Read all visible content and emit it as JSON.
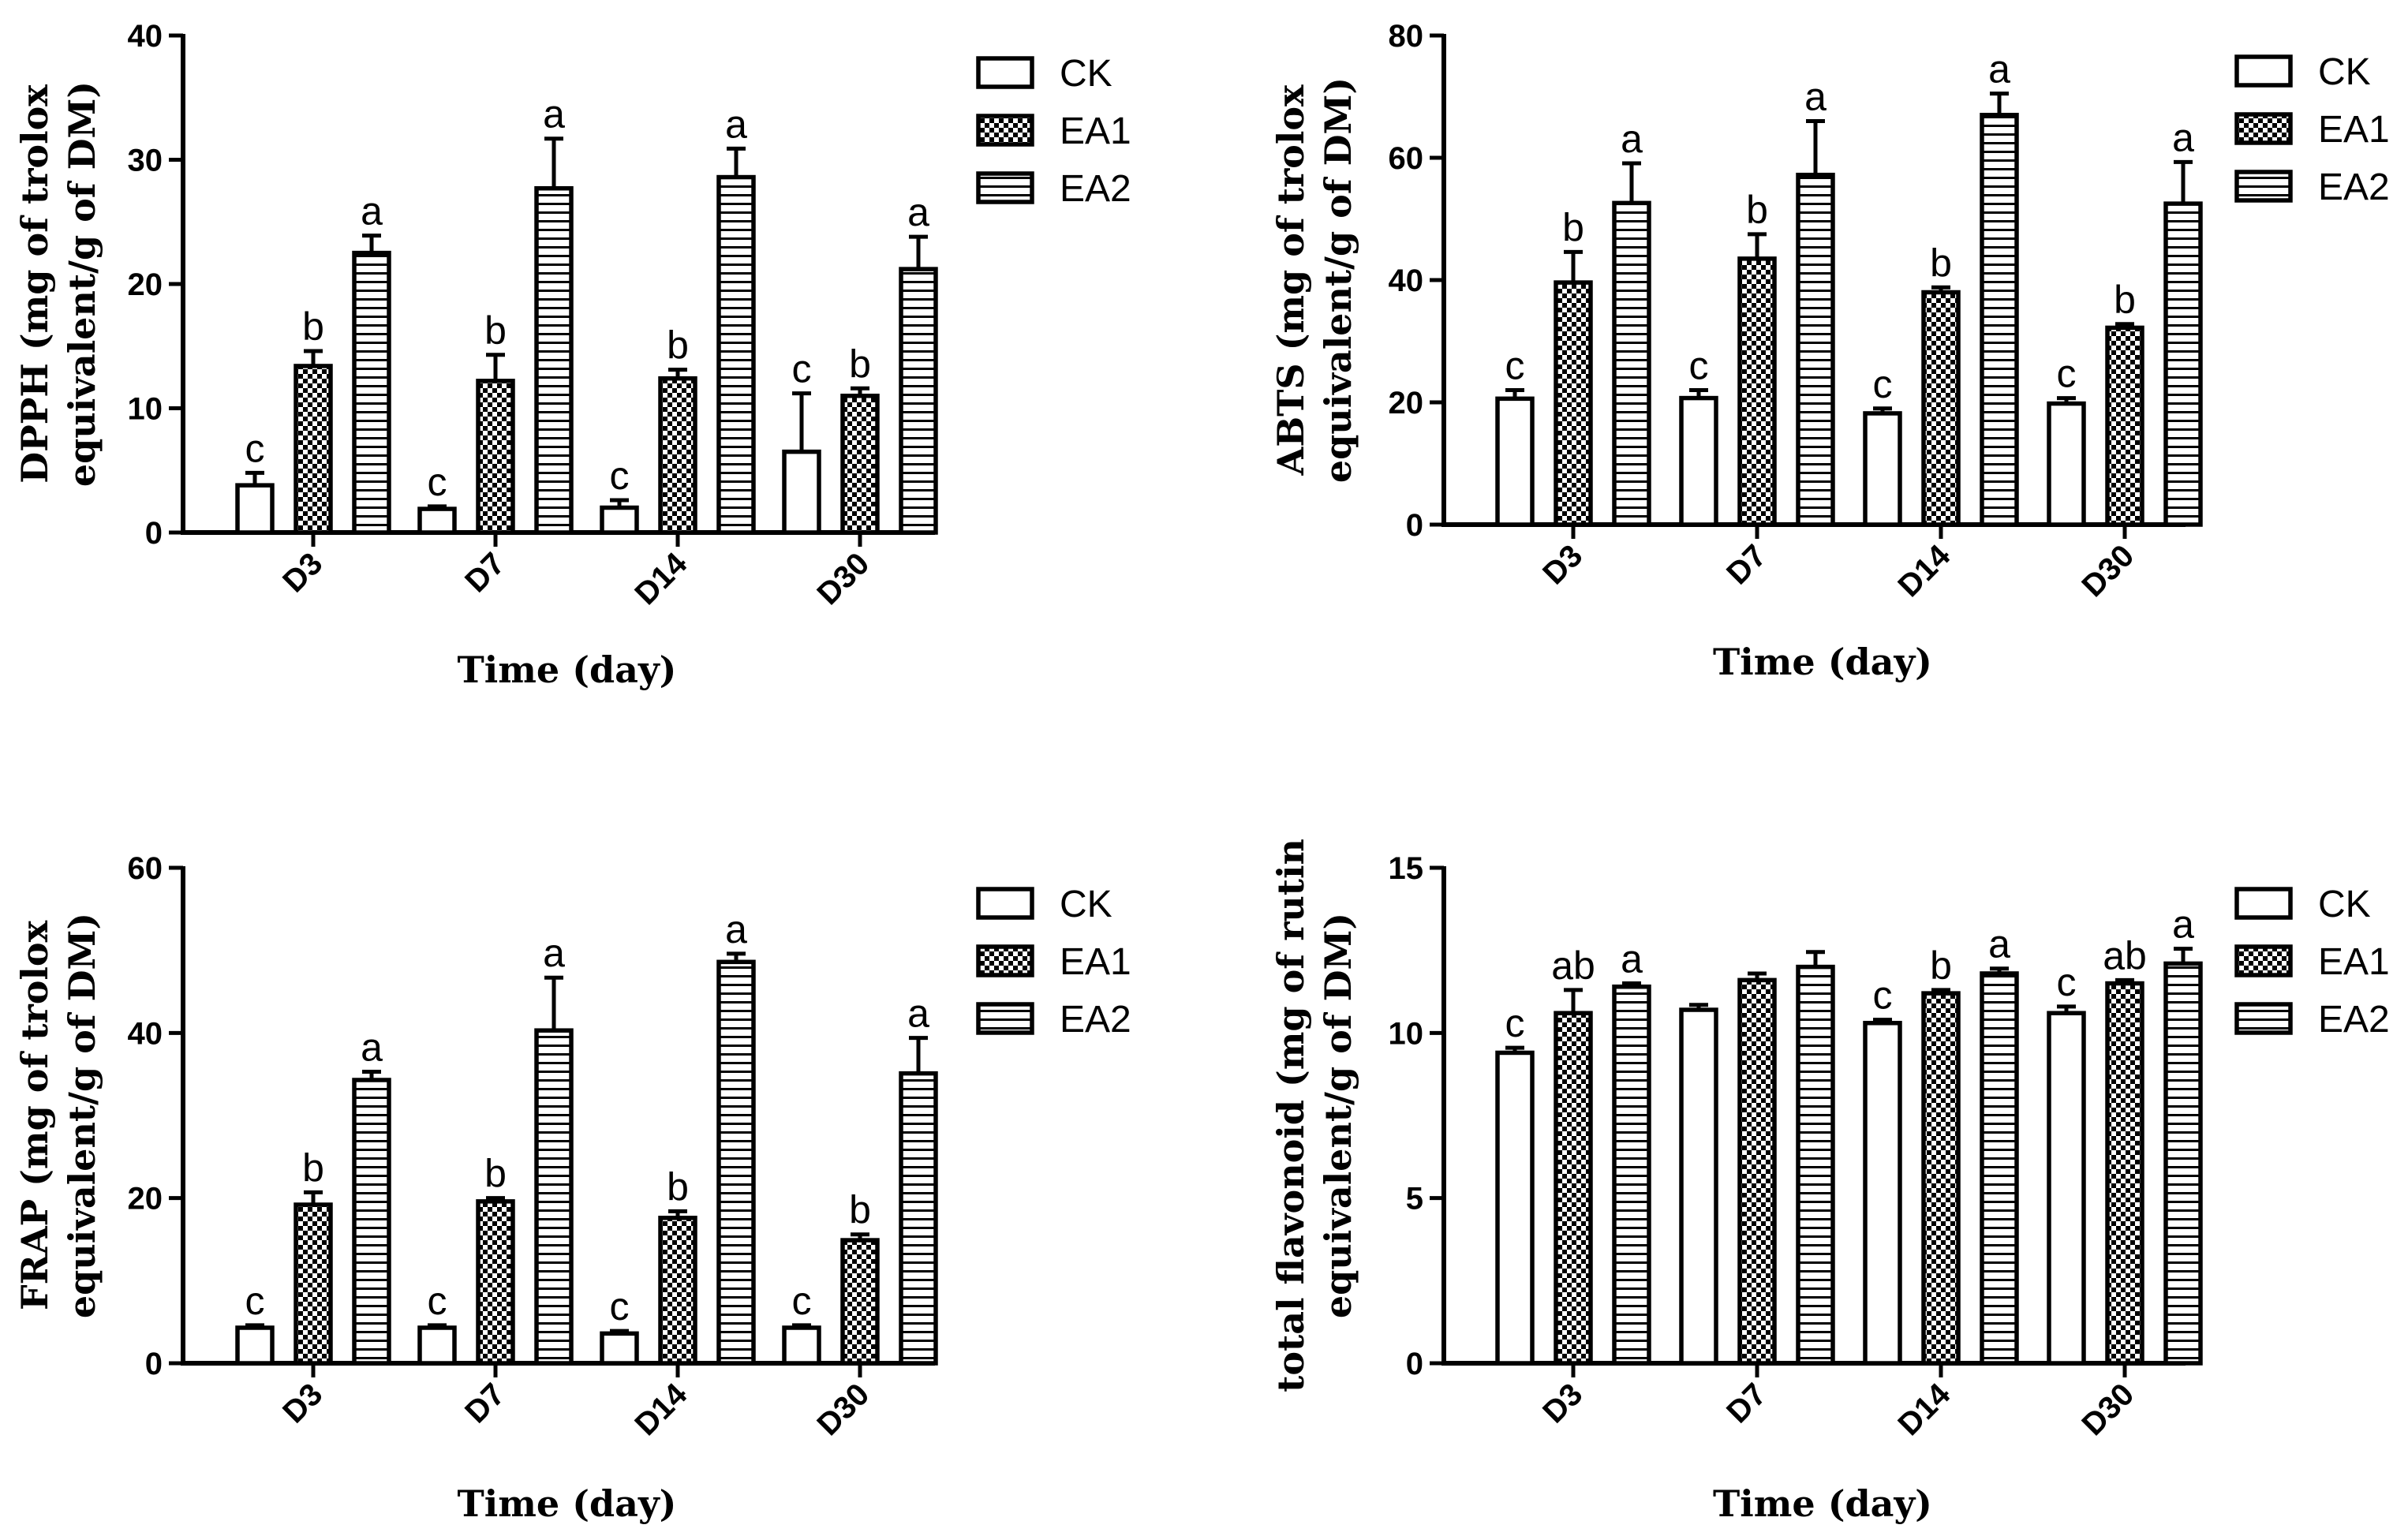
{
  "chart_data": [
    {
      "type": "bar",
      "panel": "top-left",
      "ylabel_lines": [
        "DPPH (mg of trolox",
        "equivalent/g of DM)"
      ],
      "xlabel": "Time (day)",
      "categories": [
        "D3",
        "D7",
        "D14",
        "D30"
      ],
      "ylim": [
        0,
        40
      ],
      "yticks": [
        0,
        10,
        20,
        30,
        40
      ],
      "legend": "top-right",
      "series": [
        {
          "name": "CK",
          "pattern": "white",
          "values": [
            3.8,
            1.9,
            2.0,
            6.5
          ],
          "errors": [
            1.0,
            0.2,
            0.6,
            4.7
          ],
          "sig": [
            "c",
            "c",
            "c",
            "c"
          ]
        },
        {
          "name": "EA1",
          "pattern": "checker",
          "values": [
            13.4,
            12.2,
            12.4,
            11.0
          ],
          "errors": [
            1.2,
            2.1,
            0.7,
            0.6
          ],
          "sig": [
            "b",
            "b",
            "b",
            "b"
          ]
        },
        {
          "name": "EA2",
          "pattern": "hlines",
          "values": [
            22.5,
            27.7,
            28.6,
            21.2
          ],
          "errors": [
            1.4,
            4.0,
            2.3,
            2.6
          ],
          "sig": [
            "a",
            "a",
            "a",
            "a"
          ]
        }
      ]
    },
    {
      "type": "bar",
      "panel": "top-right",
      "ylabel_lines": [
        "ABTS (mg of trolox",
        "equivalent/g of DM)"
      ],
      "xlabel": "Time (day)",
      "categories": [
        "D3",
        "D7",
        "D14",
        "D30"
      ],
      "ylim": [
        0,
        80
      ],
      "yticks": [
        0,
        20,
        40,
        60,
        80
      ],
      "legend": "top-right",
      "series": [
        {
          "name": "CK",
          "pattern": "white",
          "values": [
            20.6,
            20.7,
            18.2,
            19.8
          ],
          "errors": [
            1.4,
            1.3,
            0.8,
            0.9
          ],
          "sig": [
            "c",
            "c",
            "c",
            "c"
          ]
        },
        {
          "name": "EA1",
          "pattern": "checker",
          "values": [
            39.6,
            43.5,
            38.0,
            32.2
          ],
          "errors": [
            5.0,
            4.0,
            0.8,
            0.6
          ],
          "sig": [
            "b",
            "b",
            "b",
            "b"
          ]
        },
        {
          "name": "EA2",
          "pattern": "hlines",
          "values": [
            52.6,
            57.2,
            67.0,
            52.5
          ],
          "errors": [
            6.5,
            8.8,
            3.5,
            6.8
          ],
          "sig": [
            "a",
            "a",
            "a",
            "a"
          ]
        }
      ]
    },
    {
      "type": "bar",
      "panel": "bottom-left",
      "ylabel_lines": [
        "FRAP (mg of trolox",
        "equivalent/g of DM)"
      ],
      "xlabel": "Time (day)",
      "categories": [
        "D3",
        "D7",
        "D14",
        "D30"
      ],
      "ylim": [
        0,
        60
      ],
      "yticks": [
        0,
        20,
        40,
        60
      ],
      "legend": "top-right",
      "series": [
        {
          "name": "CK",
          "pattern": "white",
          "values": [
            4.3,
            4.3,
            3.6,
            4.3
          ],
          "errors": [
            0.3,
            0.3,
            0.3,
            0.3
          ],
          "sig": [
            "c",
            "c",
            "c",
            "c"
          ]
        },
        {
          "name": "EA1",
          "pattern": "checker",
          "values": [
            19.2,
            19.6,
            17.6,
            14.9
          ],
          "errors": [
            1.5,
            0.4,
            0.8,
            0.7
          ],
          "sig": [
            "b",
            "b",
            "b",
            "b"
          ]
        },
        {
          "name": "EA2",
          "pattern": "hlines",
          "values": [
            34.3,
            40.3,
            48.6,
            35.1
          ],
          "errors": [
            1.0,
            6.4,
            1.0,
            4.3
          ],
          "sig": [
            "a",
            "a",
            "a",
            "a"
          ]
        }
      ]
    },
    {
      "type": "bar",
      "panel": "bottom-right",
      "ylabel_lines": [
        "total flavonoid (mg of rutin",
        "equivalent/g of DM)"
      ],
      "xlabel": "Time (day)",
      "categories": [
        "D3",
        "D7",
        "D14",
        "D30"
      ],
      "ylim": [
        0,
        15
      ],
      "yticks": [
        0,
        5,
        10,
        15
      ],
      "legend": "top-right",
      "series": [
        {
          "name": "CK",
          "pattern": "white",
          "values": [
            9.4,
            10.7,
            10.3,
            10.6
          ],
          "errors": [
            0.15,
            0.15,
            0.1,
            0.2
          ],
          "sig": [
            "c",
            "",
            "c",
            "c"
          ]
        },
        {
          "name": "EA1",
          "pattern": "checker",
          "values": [
            10.6,
            11.6,
            11.2,
            11.5
          ],
          "errors": [
            0.7,
            0.2,
            0.1,
            0.1
          ],
          "sig": [
            "ab",
            "",
            "b",
            "ab"
          ]
        },
        {
          "name": "EA2",
          "pattern": "hlines",
          "values": [
            11.4,
            12.0,
            11.8,
            12.1
          ],
          "errors": [
            0.1,
            0.45,
            0.15,
            0.45
          ],
          "sig": [
            "a",
            "",
            "a",
            "a"
          ]
        }
      ]
    }
  ]
}
